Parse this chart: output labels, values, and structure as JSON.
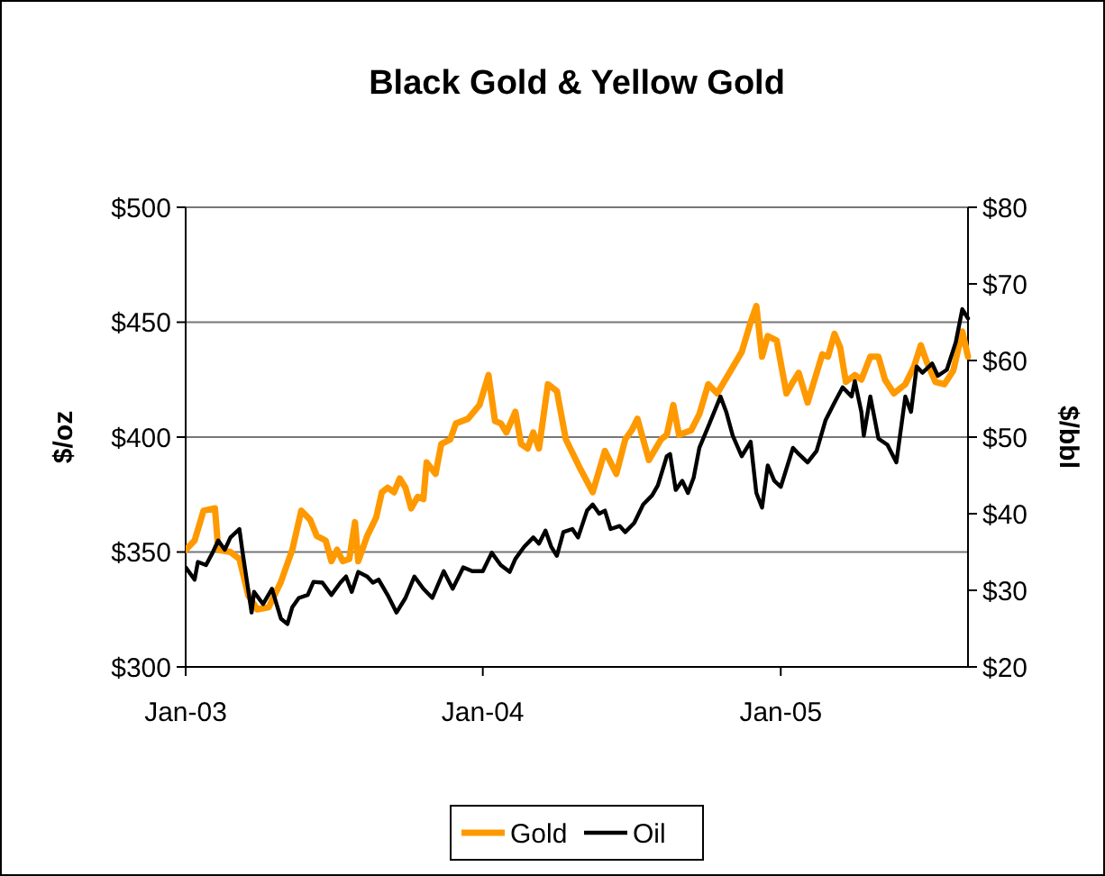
{
  "chart_data": {
    "type": "line",
    "title": "Black Gold & Yellow Gold",
    "ylabel": "$/oz",
    "y2label": "$/bbl",
    "xlim": [
      "2003-01-01",
      "2005-08-19"
    ],
    "xticks": [
      {
        "value": "2003-01-01",
        "label": "Jan-03"
      },
      {
        "value": "2004-01-01",
        "label": "Jan-04"
      },
      {
        "value": "2005-01-01",
        "label": "Jan-05"
      }
    ],
    "ylim": [
      300,
      500
    ],
    "yticks": [
      {
        "value": 300,
        "label": "$300"
      },
      {
        "value": 350,
        "label": "$350"
      },
      {
        "value": 400,
        "label": "$400"
      },
      {
        "value": 450,
        "label": "$450"
      },
      {
        "value": 500,
        "label": "$500"
      }
    ],
    "y2lim": [
      20,
      80
    ],
    "y2ticks": [
      {
        "value": 20,
        "label": "$20"
      },
      {
        "value": 30,
        "label": "$30"
      },
      {
        "value": 40,
        "label": "$40"
      },
      {
        "value": 50,
        "label": "$50"
      },
      {
        "value": 60,
        "label": "$60"
      },
      {
        "value": 70,
        "label": "$70"
      },
      {
        "value": 80,
        "label": "$80"
      }
    ],
    "grid": "y",
    "legend": "bottom",
    "marker": "none",
    "line_style": "solid",
    "series": [
      {
        "name": "Gold",
        "color": "#ff9900",
        "x": [
          "2003-01-01",
          "2003-01-12",
          "2003-01-23",
          "2003-02-06",
          "2003-02-10",
          "2003-02-25",
          "2003-03-08",
          "2003-03-19",
          "2003-03-30",
          "2003-04-13",
          "2003-04-28",
          "2003-05-12",
          "2003-05-23",
          "2003-06-03",
          "2003-06-11",
          "2003-06-22",
          "2003-06-29",
          "2003-07-06",
          "2003-07-13",
          "2003-07-21",
          "2003-07-28",
          "2003-08-01",
          "2003-08-12",
          "2003-08-23",
          "2003-08-30",
          "2003-09-06",
          "2003-09-14",
          "2003-09-21",
          "2003-09-28",
          "2003-10-05",
          "2003-10-13",
          "2003-10-20",
          "2003-10-24",
          "2003-11-04",
          "2003-11-11",
          "2003-11-22",
          "2003-11-29",
          "2003-12-14",
          "2003-12-28",
          "2004-01-08",
          "2004-01-16",
          "2004-01-23",
          "2004-01-30",
          "2004-02-10",
          "2004-02-17",
          "2004-02-25",
          "2004-03-03",
          "2004-03-10",
          "2004-03-21",
          "2004-04-01",
          "2004-04-12",
          "2004-04-30",
          "2004-05-15",
          "2004-05-30",
          "2004-06-13",
          "2004-06-24",
          "2004-07-02",
          "2004-07-09",
          "2004-07-23",
          "2004-08-07",
          "2004-08-14",
          "2004-08-22",
          "2004-08-29",
          "2004-09-13",
          "2004-09-23",
          "2004-10-04",
          "2004-10-15",
          "2004-11-14",
          "2004-11-25",
          "2004-12-02",
          "2004-12-09",
          "2004-12-16",
          "2004-12-27",
          "2005-01-08",
          "2005-01-16",
          "2005-01-23",
          "2005-02-03",
          "2005-02-21",
          "2005-02-28",
          "2005-03-08",
          "2005-03-15",
          "2005-03-22",
          "2005-04-02",
          "2005-04-10",
          "2005-04-21",
          "2005-05-01",
          "2005-05-09",
          "2005-05-20",
          "2005-06-03",
          "2005-06-14",
          "2005-06-22",
          "2005-06-29",
          "2005-07-10",
          "2005-07-21",
          "2005-08-01",
          "2005-08-12",
          "2005-08-19"
        ],
        "values": [
          351,
          355,
          368,
          369,
          351,
          350,
          347,
          331,
          325,
          326,
          337,
          351,
          368,
          364,
          357,
          355,
          346,
          351,
          346,
          347,
          363,
          346,
          357,
          365,
          376,
          378,
          376,
          382,
          378,
          369,
          374,
          373,
          389,
          384,
          397,
          399,
          406,
          408,
          414,
          427,
          407,
          406,
          402,
          411,
          397,
          395,
          402,
          395,
          423,
          420,
          399,
          386,
          376,
          394,
          384,
          399,
          403,
          408,
          390,
          399,
          401,
          414,
          401,
          403,
          410,
          423,
          419,
          437,
          450,
          457,
          435,
          444,
          442,
          419,
          424,
          428,
          415,
          436,
          435,
          445,
          439,
          424,
          427,
          425,
          435,
          435,
          425,
          419,
          423,
          431,
          440,
          433,
          424,
          423,
          429,
          446,
          435
        ]
      },
      {
        "name": "Oil",
        "color": "#000000",
        "axis": "y2",
        "x": [
          "2003-01-01",
          "2003-01-12",
          "2003-01-16",
          "2003-01-26",
          "2003-02-03",
          "2003-02-10",
          "2003-02-18",
          "2003-02-25",
          "2003-03-08",
          "2003-03-12",
          "2003-03-23",
          "2003-03-26",
          "2003-04-06",
          "2003-04-17",
          "2003-04-28",
          "2003-05-06",
          "2003-05-12",
          "2003-05-20",
          "2003-05-31",
          "2003-06-07",
          "2003-06-18",
          "2003-06-29",
          "2003-07-10",
          "2003-07-17",
          "2003-07-24",
          "2003-08-01",
          "2003-08-12",
          "2003-08-19",
          "2003-08-26",
          "2003-09-06",
          "2003-09-17",
          "2003-09-28",
          "2003-10-09",
          "2003-10-20",
          "2003-10-31",
          "2003-11-14",
          "2003-11-25",
          "2003-12-08",
          "2003-12-19",
          "2004-01-01",
          "2004-01-12",
          "2004-01-23",
          "2004-02-03",
          "2004-02-10",
          "2004-02-21",
          "2004-03-03",
          "2004-03-10",
          "2004-03-18",
          "2004-03-25",
          "2004-04-01",
          "2004-04-09",
          "2004-04-20",
          "2004-04-27",
          "2004-05-08",
          "2004-05-15",
          "2004-05-23",
          "2004-05-30",
          "2004-06-06",
          "2004-06-17",
          "2004-06-24",
          "2004-07-05",
          "2004-07-16",
          "2004-07-27",
          "2004-08-03",
          "2004-08-14",
          "2004-08-18",
          "2004-08-25",
          "2004-09-02",
          "2004-09-09",
          "2004-09-16",
          "2004-09-23",
          "2004-10-04",
          "2004-10-19",
          "2004-10-26",
          "2004-11-03",
          "2004-11-14",
          "2004-11-25",
          "2004-12-02",
          "2004-12-09",
          "2004-12-16",
          "2004-12-24",
          "2005-01-01",
          "2005-01-16",
          "2005-01-23",
          "2005-02-03",
          "2005-02-14",
          "2005-02-25",
          "2005-03-08",
          "2005-03-18",
          "2005-03-29",
          "2005-04-02",
          "2005-04-10",
          "2005-04-13",
          "2005-04-21",
          "2005-05-01",
          "2005-05-12",
          "2005-05-23",
          "2005-06-03",
          "2005-06-10",
          "2005-06-17",
          "2005-06-24",
          "2005-07-06",
          "2005-07-13",
          "2005-07-24",
          "2005-08-04",
          "2005-08-12",
          "2005-08-19"
        ],
        "values": [
          33,
          31.4,
          33.7,
          33.3,
          34.9,
          36.5,
          35.3,
          36.9,
          38,
          34.9,
          27.1,
          29.8,
          28.2,
          30.2,
          26.3,
          25.6,
          27.8,
          29,
          29.4,
          31.1,
          31,
          29.4,
          31,
          31.8,
          29.8,
          32.4,
          31.8,
          31,
          31.4,
          29.4,
          27.1,
          29,
          31.8,
          30.2,
          29,
          32.5,
          30.2,
          33,
          32.5,
          32.5,
          34.9,
          33.3,
          32.4,
          34.1,
          35.7,
          36.9,
          36.1,
          37.8,
          35.7,
          34.5,
          37.6,
          38,
          36.9,
          40.4,
          41.2,
          40,
          40.4,
          38,
          38.4,
          37.6,
          38.8,
          41.2,
          42.4,
          43.7,
          47.5,
          47.8,
          43.1,
          44.3,
          42.7,
          44.7,
          48.6,
          51.4,
          55.3,
          53.3,
          50.2,
          47.5,
          49.4,
          42.7,
          40.8,
          46.3,
          44.3,
          43.5,
          48.6,
          47.8,
          46.7,
          48.2,
          52.2,
          54.5,
          56.5,
          55.3,
          57.3,
          53.3,
          50.2,
          55.3,
          49.8,
          49,
          46.7,
          55.3,
          53.3,
          59.2,
          58.4,
          59.6,
          58,
          58.8,
          62.4,
          66.7,
          65.5
        ]
      }
    ]
  }
}
